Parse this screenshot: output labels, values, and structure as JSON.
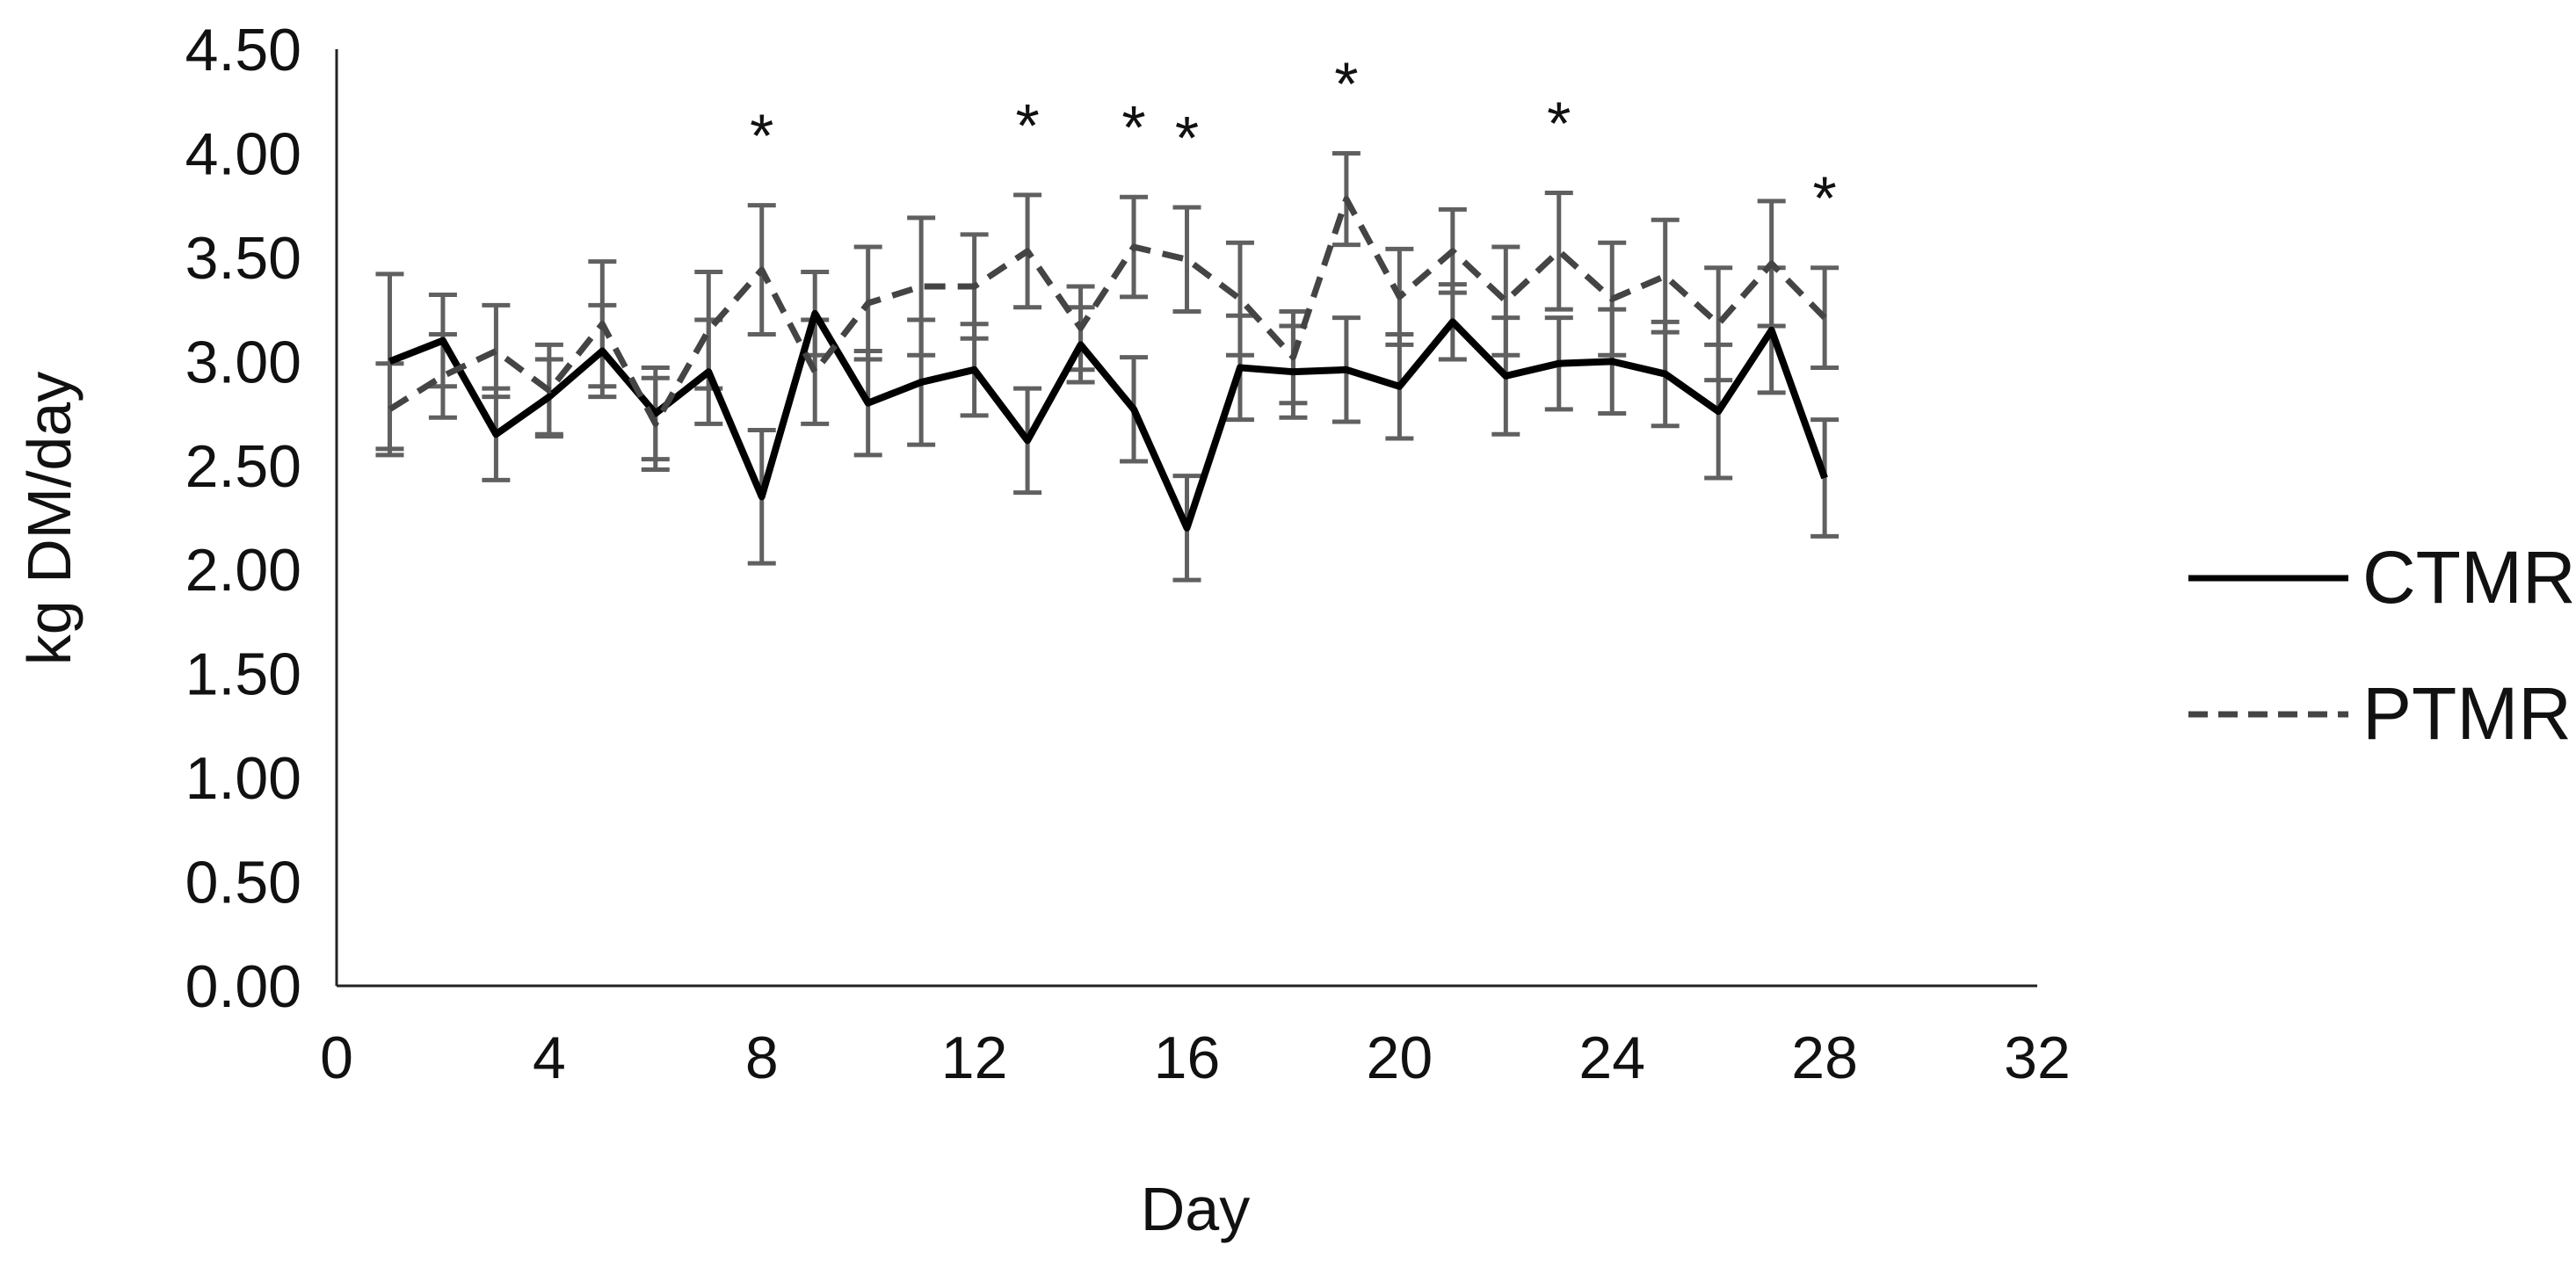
{
  "chart_data": {
    "type": "line",
    "title": "",
    "xlabel": "Day",
    "ylabel": "kg DM/day",
    "xlim": [
      0,
      32
    ],
    "ylim": [
      0,
      4.5
    ],
    "xticks": [
      0,
      4,
      8,
      12,
      16,
      20,
      24,
      28,
      32
    ],
    "xtick_labels": [
      "0",
      "4",
      "8",
      "12",
      "16",
      "20",
      "24",
      "28",
      "32"
    ],
    "yticks": [
      0,
      0.5,
      1,
      1.5,
      2,
      2.5,
      3,
      3.5,
      4,
      4.5
    ],
    "ytick_labels": [
      "0.00",
      "0.50",
      "1.00",
      "1.50",
      "2.00",
      "2.50",
      "3.00",
      "3.50",
      "4.00",
      "4.50"
    ],
    "grid": false,
    "legend_position": "right",
    "x": [
      1,
      2,
      3,
      4,
      5,
      6,
      7,
      8,
      9,
      10,
      11,
      12,
      13,
      14,
      15,
      16,
      17,
      18,
      19,
      20,
      21,
      22,
      23,
      24,
      25,
      26,
      27,
      28
    ],
    "series": [
      {
        "name": "CTMR",
        "style": "solid",
        "color": "#000000",
        "values": [
          3.0,
          3.1,
          2.65,
          2.83,
          3.05,
          2.75,
          2.95,
          2.35,
          3.23,
          2.8,
          2.9,
          2.96,
          2.62,
          3.08,
          2.77,
          2.2,
          2.97,
          2.95,
          2.96,
          2.88,
          3.19,
          2.93,
          2.99,
          3.0,
          2.94,
          2.76,
          3.15,
          2.44
        ],
        "errors": [
          0.42,
          0.22,
          0.22,
          0.18,
          0.22,
          0.22,
          0.25,
          0.32,
          0.2,
          0.25,
          0.3,
          0.22,
          0.25,
          0.18,
          0.25,
          0.25,
          0.25,
          0.22,
          0.25,
          0.25,
          0.18,
          0.28,
          0.22,
          0.25,
          0.25,
          0.32,
          0.3,
          0.28
        ]
      },
      {
        "name": "PTMR",
        "style": "dashed",
        "color": "#444444",
        "values": [
          2.77,
          2.93,
          3.05,
          2.86,
          3.18,
          2.7,
          3.15,
          3.44,
          2.95,
          3.28,
          3.36,
          3.36,
          3.53,
          3.16,
          3.55,
          3.49,
          3.3,
          3.02,
          3.78,
          3.31,
          3.53,
          3.29,
          3.53,
          3.3,
          3.41,
          3.18,
          3.47,
          3.21
        ],
        "errors": [
          0.22,
          0.2,
          0.22,
          0.22,
          0.3,
          0.22,
          0.28,
          0.31,
          0.25,
          0.27,
          0.33,
          0.25,
          0.27,
          0.2,
          0.24,
          0.25,
          0.27,
          0.22,
          0.22,
          0.23,
          0.2,
          0.26,
          0.28,
          0.27,
          0.27,
          0.27,
          0.3,
          0.24
        ]
      }
    ],
    "annotations": [
      {
        "text": "*",
        "x": 8
      },
      {
        "text": "*",
        "x": 13
      },
      {
        "text": "*",
        "x": 15
      },
      {
        "text": "*",
        "x": 16
      },
      {
        "text": "*",
        "x": 19
      },
      {
        "text": "*",
        "x": 23
      },
      {
        "text": "*",
        "x": 28
      }
    ]
  }
}
